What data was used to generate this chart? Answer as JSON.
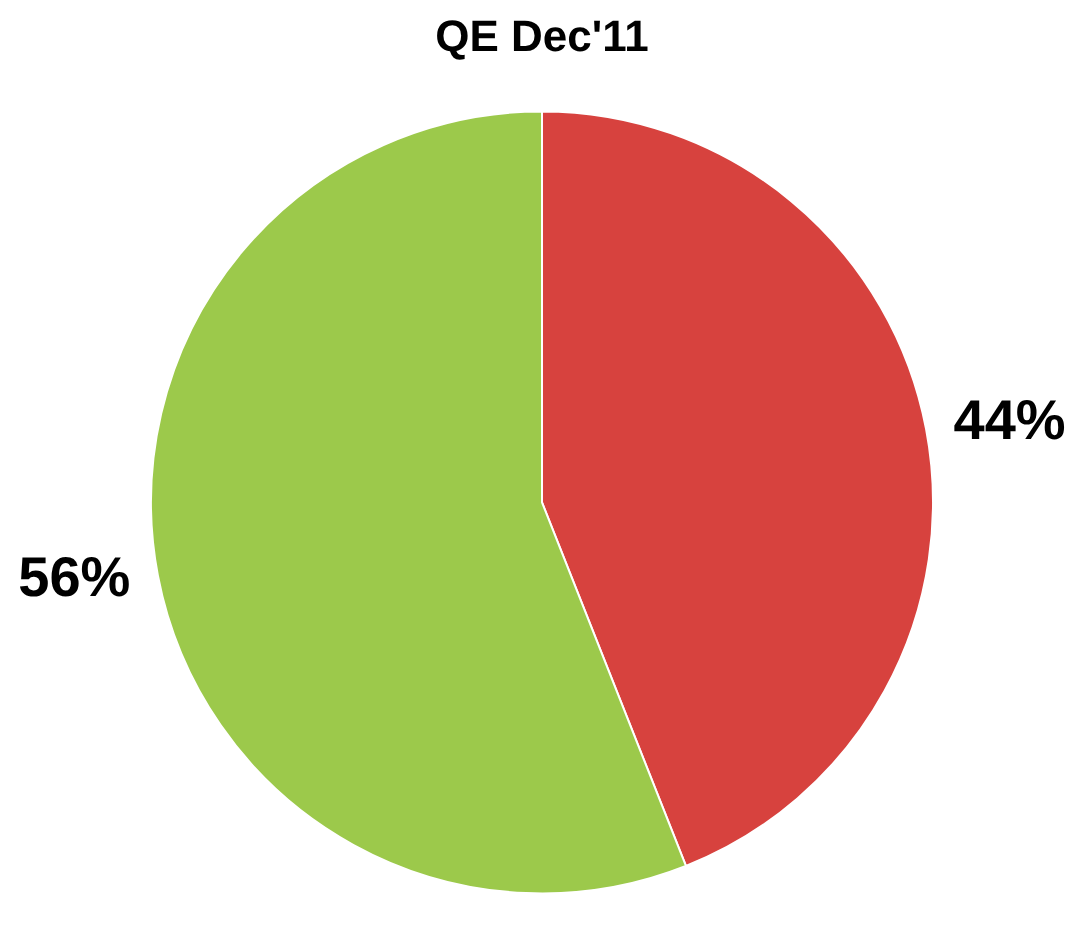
{
  "chart_data": {
    "type": "pie",
    "title": "QE Dec'11",
    "categories": [
      null,
      null
    ],
    "values": [
      44,
      56
    ],
    "colors": [
      "#d7423e",
      "#9cc94b"
    ],
    "value_labels": [
      "44%",
      "56%"
    ],
    "legend": false
  }
}
